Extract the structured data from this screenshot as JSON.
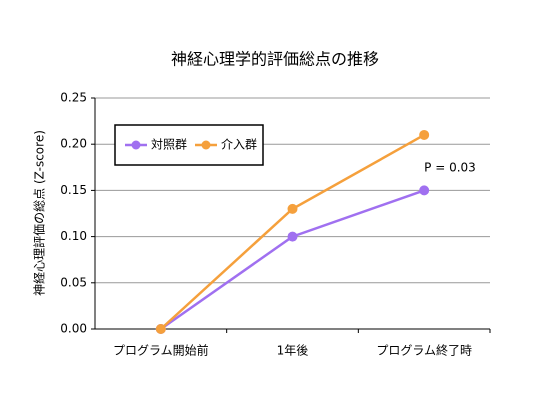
{
  "chart_data": {
    "type": "line",
    "title": "神経心理学的評価総点の推移",
    "y_label": "神経心理評価の総点 (Z-score)",
    "categories": [
      "プログラム開始前",
      "1年後",
      "プログラム終了時"
    ],
    "series": [
      {
        "name": "対照群",
        "color": "#a070f0",
        "values": [
          0,
          0.1,
          0.15
        ]
      },
      {
        "name": "介入群",
        "color": "#f5a03c",
        "values": [
          0,
          0.13,
          0.21
        ]
      }
    ],
    "ylim": [
      0,
      0.25
    ],
    "yticks": [
      {
        "value": 0,
        "label": "0.00"
      },
      {
        "value": 0.05,
        "label": "0.05"
      },
      {
        "value": 0.1,
        "label": "0.10"
      },
      {
        "value": 0.15,
        "label": "0.15"
      },
      {
        "value": 0.2,
        "label": "0.20"
      },
      {
        "value": 0.25,
        "label": "0.25"
      }
    ],
    "grid": true,
    "legend": "upper-left",
    "annotation": "P = 0.03"
  }
}
